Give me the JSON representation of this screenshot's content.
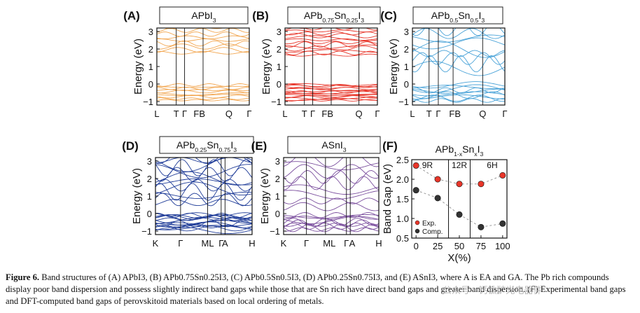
{
  "panels": [
    {
      "letter": "(A)",
      "title": {
        "base": "APbI",
        "sub": "3",
        "tail": ""
      },
      "ticks": [
        "L",
        "T",
        "Γ",
        "FB",
        "Q",
        "Γ"
      ],
      "color": "#f2a650",
      "seed": 1
    },
    {
      "letter": "(B)",
      "title": {
        "base": "APb",
        "sub": "0.75",
        "mid": "Sn",
        "sub2": "0.25",
        "end": "I",
        "sub3": "3"
      },
      "ticks": [
        "L",
        "T",
        "Γ",
        "FB",
        "Q",
        "Γ"
      ],
      "color": "#e8362a",
      "seed": 2
    },
    {
      "letter": "(C)",
      "title": {
        "base": "APb",
        "sub": "0.5",
        "mid": "Sn",
        "sub2": "0.5",
        "end": "I",
        "sub3": "3"
      },
      "ticks": [
        "L",
        "T",
        "Γ",
        "FB",
        "Q",
        "Γ"
      ],
      "color": "#4aa3d8",
      "seed": 3
    },
    {
      "letter": "(D)",
      "title": {
        "base": "APb",
        "sub": "0.25",
        "mid": "Sn",
        "sub2": "0.75",
        "end": "I",
        "sub3": "3"
      },
      "ticks": [
        "K",
        "Γ",
        "ML",
        "Γ",
        "A",
        "H"
      ],
      "color": "#1f3c98",
      "seed": 4
    },
    {
      "letter": "(E)",
      "title": {
        "base": "ASnI",
        "sub": "3",
        "tail": ""
      },
      "ticks": [
        "K",
        "Γ",
        "ML",
        "Γ",
        "A",
        "H"
      ],
      "color": "#7b4f9e",
      "seed": 5
    }
  ],
  "energy_axis": {
    "label": "Energy (eV)",
    "ticks": [
      "3",
      "2",
      "1",
      "0",
      "−1"
    ]
  },
  "panel_f": {
    "letter": "(F)",
    "title": {
      "base": "APb",
      "sub": "1-x",
      "mid": "Sn",
      "sub2": "x",
      "end": "I",
      "sub3": "3"
    },
    "regions": [
      "9R",
      "12R",
      "6H"
    ],
    "legend": [
      "Exp.",
      "Comp."
    ]
  },
  "chart_data": {
    "type": "scatter",
    "title": "APb1-xSnxI3",
    "xlabel": "X(%)",
    "ylabel": "Band Gap (eV)",
    "x_ticks": [
      "0",
      "25",
      "50",
      "75",
      "100"
    ],
    "y_ticks": [
      "2.5",
      "2.0",
      "1.5",
      "1.0",
      "0.5"
    ],
    "xlim": [
      -5,
      105
    ],
    "ylim": [
      0.5,
      2.5
    ],
    "series": [
      {
        "name": "Exp.",
        "color": "#e8362a",
        "x": [
          0,
          25,
          50,
          75,
          100
        ],
        "y": [
          2.35,
          2.0,
          1.88,
          1.88,
          2.1
        ]
      },
      {
        "name": "Comp.",
        "color": "#333333",
        "x": [
          0,
          25,
          50,
          75,
          100
        ],
        "y": [
          1.72,
          1.52,
          1.1,
          0.78,
          0.87
        ]
      }
    ]
  },
  "caption": {
    "label": "Figure 6.",
    "text": " Band structures of (A) APbI3, (B) APb0.75Sn0.25I3, (C) APb0.5Sn0.5I3, (D) APb0.25Sn0.75I3, and (E) ASnI3, where A is EA and GA. The Pb rich compounds display poor band dispersion and possess slightly indirect band gaps while those that are Sn rich have direct band gaps and greater band dispersion. (F) Experimental band gaps and DFT-computed band gaps of perovskitoid materials based on local ordering of metals."
  },
  "watermark": "公众号 · 钙钛矿光电器件"
}
